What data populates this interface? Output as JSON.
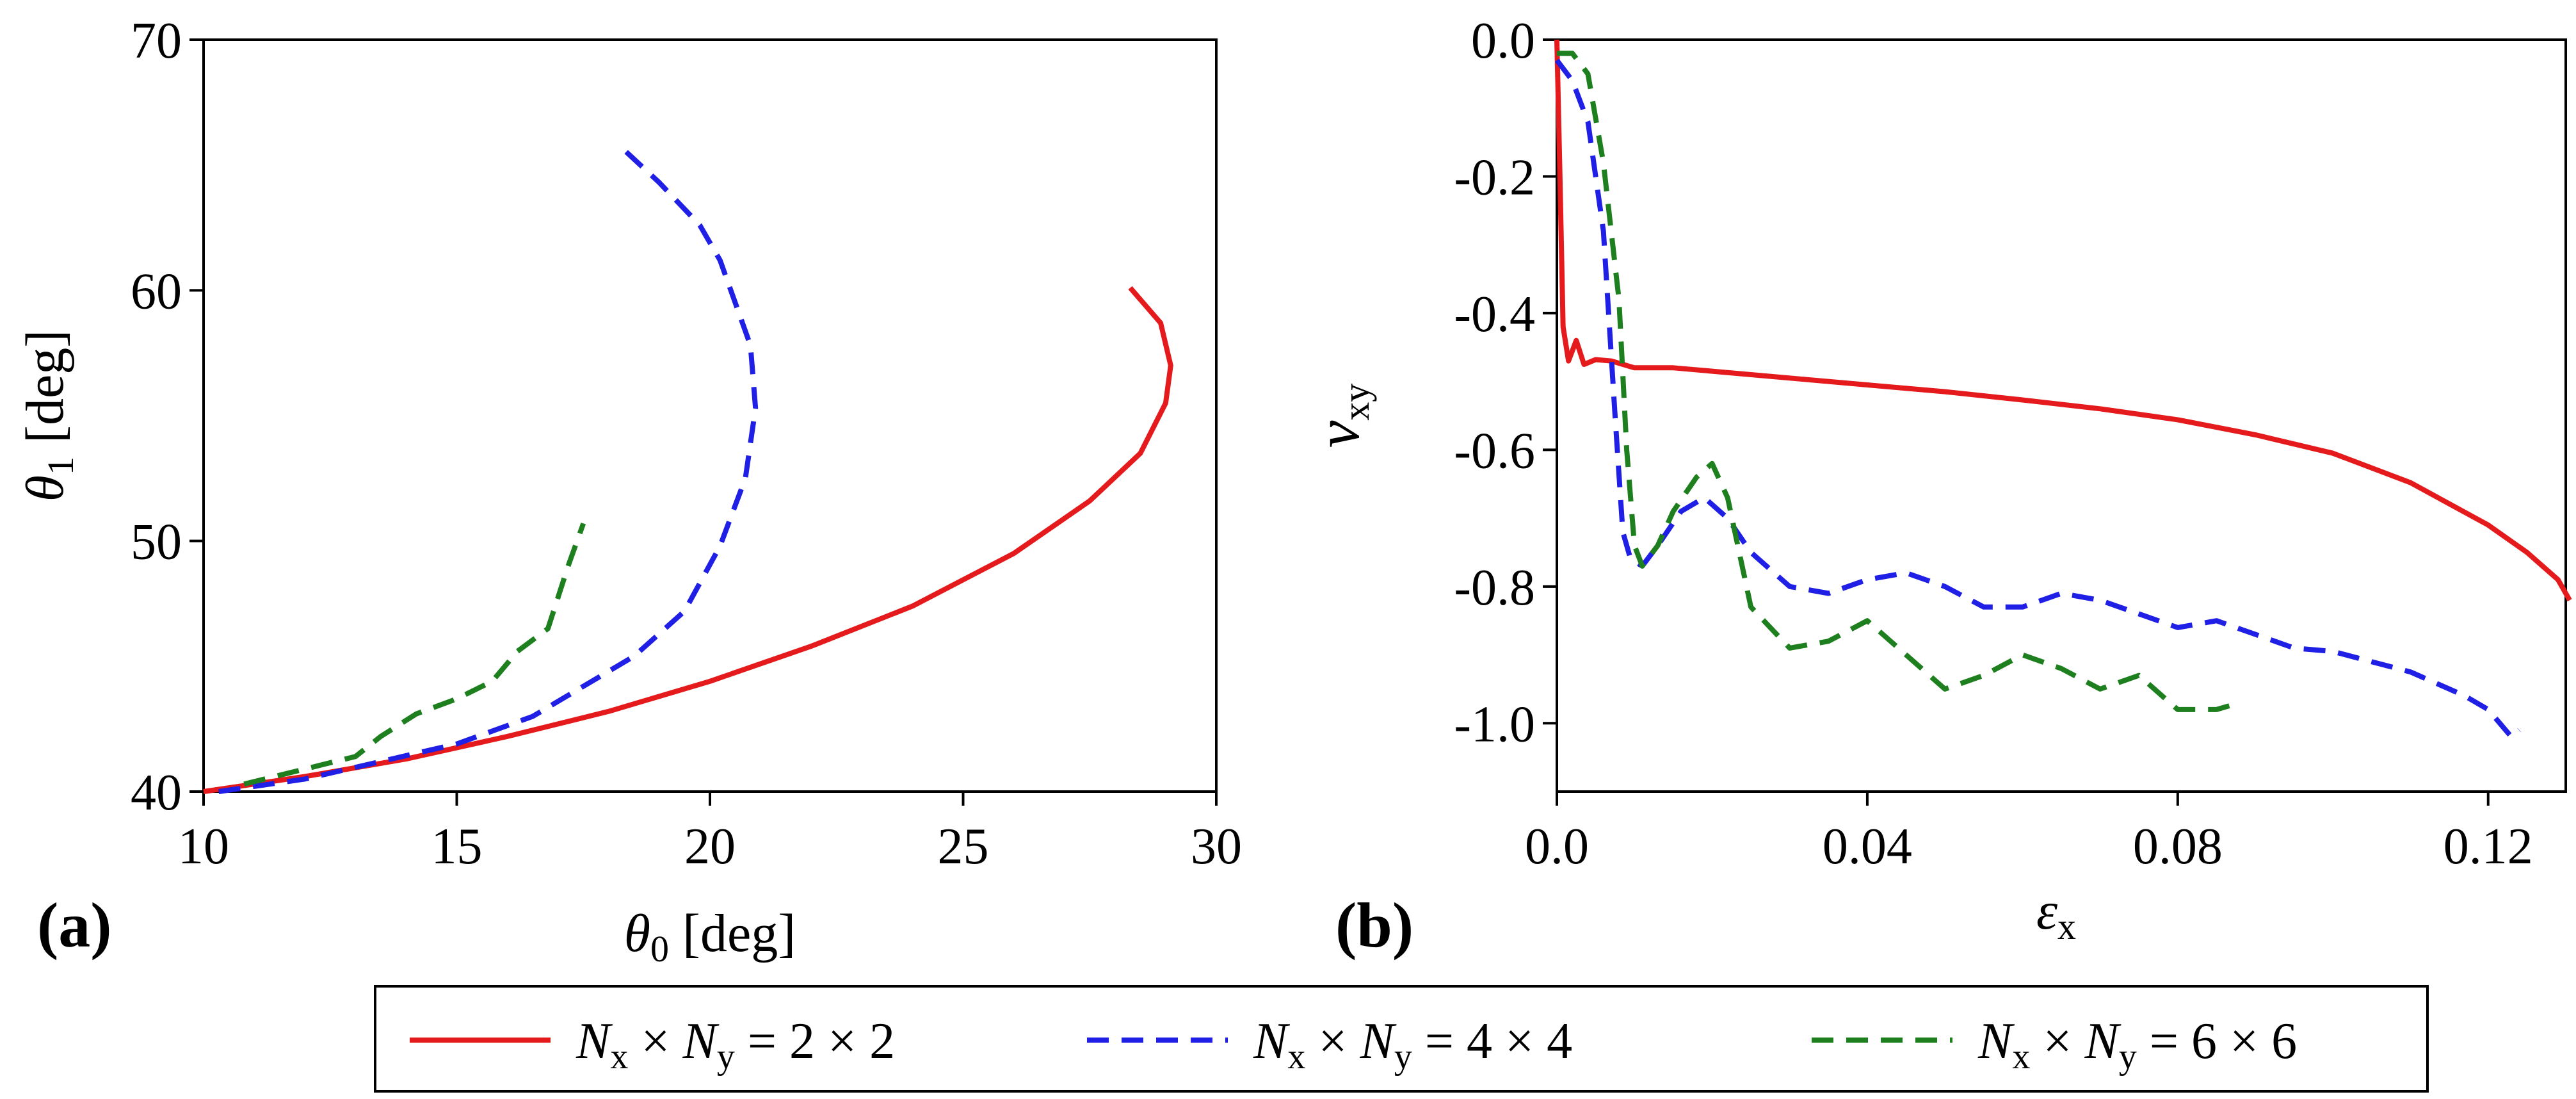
{
  "chart_data": [
    {
      "panel": "(a)",
      "type": "line",
      "xlabel": "θ0 [deg]",
      "ylabel": "θ1 [deg]",
      "xlim": [
        10,
        30
      ],
      "ylim": [
        40,
        70
      ],
      "xticks": [
        10,
        15,
        20,
        25,
        30
      ],
      "yticks": [
        40,
        50,
        60,
        70
      ],
      "xtick_labels": [
        "10",
        "15",
        "20",
        "25",
        "30"
      ],
      "ytick_labels": [
        "40",
        "50",
        "60",
        "70"
      ],
      "series": [
        {
          "name": "Nx × Ny = 2 × 2",
          "color": "#e41a1c",
          "style": "solid",
          "x": [
            10,
            12,
            14,
            16,
            18,
            20,
            22,
            24,
            26,
            27.5,
            28.5,
            29.0,
            29.1,
            28.9,
            28.3
          ],
          "y": [
            40,
            40.6,
            41.3,
            42.2,
            43.2,
            44.4,
            45.8,
            47.4,
            49.5,
            51.6,
            53.5,
            55.5,
            57.0,
            58.7,
            60.1
          ]
        },
        {
          "name": "Nx × Ny = 4 × 4",
          "color": "#1f1fe6",
          "style": "dashed",
          "x": [
            10.3,
            12,
            13.5,
            15,
            16.5,
            17.5,
            18.5,
            19.5,
            20.2,
            20.7,
            20.9,
            20.8,
            20.5,
            20.2,
            19.8,
            19.0,
            18.2
          ],
          "y": [
            40,
            40.5,
            41.2,
            41.9,
            43.0,
            44.2,
            45.4,
            47.2,
            49.8,
            52.5,
            55.3,
            57.8,
            59.5,
            61.2,
            62.6,
            64.3,
            65.8
          ]
        },
        {
          "name": "Nx × Ny = 6 × 6",
          "color": "#1e7f1e",
          "style": "dashed",
          "x": [
            10.8,
            12,
            13,
            13.5,
            14.2,
            15.0,
            15.7,
            16.2,
            16.8,
            17.2,
            17.5
          ],
          "y": [
            40.3,
            40.9,
            41.4,
            42.2,
            43.1,
            43.7,
            44.4,
            45.6,
            46.5,
            49.0,
            50.7
          ]
        }
      ]
    },
    {
      "panel": "(b)",
      "type": "line",
      "xlabel": "εx",
      "ylabel": "νxy",
      "xlim": [
        0,
        0.13
      ],
      "ylim": [
        -1.1,
        0
      ],
      "xticks": [
        0,
        0.04,
        0.08,
        0.12
      ],
      "yticks": [
        0,
        -0.2,
        -0.4,
        -0.6,
        -0.8,
        -1.0
      ],
      "xtick_labels": [
        "0.0",
        "0.04",
        "0.08",
        "0.12"
      ],
      "ytick_labels": [
        "0.0",
        "-0.2",
        "-0.4",
        "-0.6",
        "-0.8",
        "-1.0"
      ],
      "series": [
        {
          "name": "Nx × Ny = 2 × 2",
          "color": "#e41a1c",
          "style": "solid",
          "x": [
            0,
            0.0004,
            0.0008,
            0.0015,
            0.0025,
            0.0035,
            0.005,
            0.007,
            0.01,
            0.015,
            0.02,
            0.03,
            0.04,
            0.05,
            0.06,
            0.07,
            0.08,
            0.09,
            0.1,
            0.11,
            0.12,
            0.125,
            0.129,
            0.1305
          ],
          "y": [
            0.0,
            -0.2,
            -0.42,
            -0.47,
            -0.44,
            -0.475,
            -0.468,
            -0.47,
            -0.48,
            -0.48,
            -0.485,
            -0.495,
            -0.505,
            -0.515,
            -0.527,
            -0.54,
            -0.556,
            -0.578,
            -0.605,
            -0.648,
            -0.71,
            -0.75,
            -0.79,
            -0.82
          ]
        },
        {
          "name": "Nx × Ny = 4 × 4",
          "color": "#1f1fe6",
          "style": "dashed",
          "x": [
            0,
            0.002,
            0.004,
            0.006,
            0.0075,
            0.0085,
            0.0095,
            0.011,
            0.013,
            0.016,
            0.019,
            0.022,
            0.025,
            0.03,
            0.035,
            0.04,
            0.045,
            0.05,
            0.055,
            0.06,
            0.065,
            0.07,
            0.075,
            0.08,
            0.085,
            0.09,
            0.095,
            0.1,
            0.105,
            0.11,
            0.113,
            0.117,
            0.12,
            0.123,
            0.124
          ],
          "y": [
            -0.03,
            -0.06,
            -0.12,
            -0.28,
            -0.55,
            -0.72,
            -0.76,
            -0.77,
            -0.74,
            -0.69,
            -0.67,
            -0.7,
            -0.75,
            -0.8,
            -0.81,
            -0.79,
            -0.78,
            -0.8,
            -0.83,
            -0.83,
            -0.81,
            -0.82,
            -0.84,
            -0.86,
            -0.85,
            -0.87,
            -0.89,
            -0.895,
            -0.91,
            -0.925,
            -0.94,
            -0.96,
            -0.98,
            -1.02,
            -1.01
          ]
        },
        {
          "name": "Nx × Ny = 6 × 6",
          "color": "#1e7f1e",
          "style": "dashed",
          "x": [
            0,
            0.002,
            0.004,
            0.006,
            0.008,
            0.009,
            0.01,
            0.011,
            0.013,
            0.015,
            0.018,
            0.02,
            0.022,
            0.025,
            0.03,
            0.035,
            0.04,
            0.045,
            0.05,
            0.055,
            0.06,
            0.065,
            0.07,
            0.075,
            0.08,
            0.085,
            0.088
          ],
          "y": [
            -0.02,
            -0.02,
            -0.05,
            -0.18,
            -0.38,
            -0.6,
            -0.74,
            -0.77,
            -0.74,
            -0.69,
            -0.64,
            -0.62,
            -0.67,
            -0.83,
            -0.89,
            -0.88,
            -0.85,
            -0.9,
            -0.95,
            -0.93,
            -0.9,
            -0.92,
            -0.95,
            -0.93,
            -0.98,
            -0.98,
            -0.97
          ]
        }
      ]
    }
  ],
  "legend": {
    "placement": "bottom-center",
    "items": [
      {
        "left": "Nx",
        "left_sub": "x",
        "right": "Ny",
        "right_sub": "y",
        "text_left_var": "N",
        "text_right_var": "N",
        "value": "= 2 × 2",
        "color": "#e41a1c",
        "style": "solid"
      },
      {
        "left": "Nx",
        "left_sub": "x",
        "right": "Ny",
        "right_sub": "y",
        "text_left_var": "N",
        "text_right_var": "N",
        "value": "= 4 × 4",
        "color": "#1f1fe6",
        "style": "dashed"
      },
      {
        "left": "Nx",
        "left_sub": "x",
        "right": "Ny",
        "right_sub": "y",
        "text_left_var": "N",
        "text_right_var": "N",
        "value": "= 6 × 6",
        "color": "#1e7f1e",
        "style": "dashed"
      }
    ]
  },
  "labels": {
    "panel_a": "(a)",
    "panel_b": "(b)",
    "xlabel_a_symbol": "θ",
    "xlabel_a_sub": "0",
    "xlabel_a_unit": " [deg]",
    "ylabel_a_symbol": "θ",
    "ylabel_a_sub": "1",
    "ylabel_a_unit": " [deg]",
    "xlabel_b_symbol": "ε",
    "xlabel_b_sub": "x",
    "ylabel_b_symbol": "ν",
    "ylabel_b_sub": "xy",
    "times": "×"
  }
}
